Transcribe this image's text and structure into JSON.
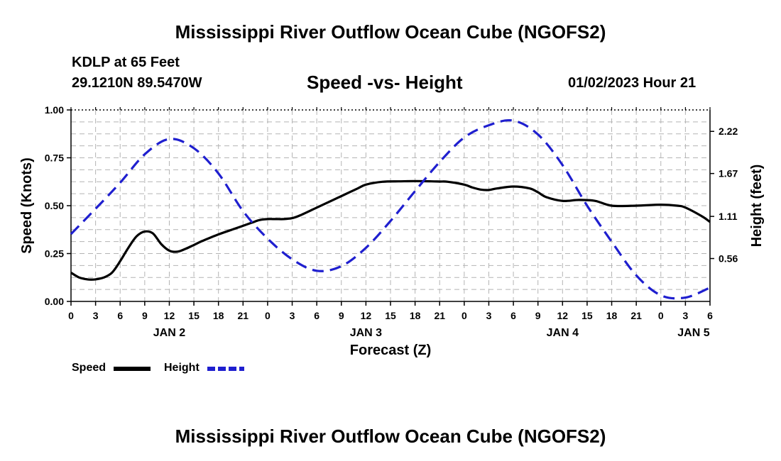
{
  "header": {
    "title": "Mississippi River Outflow Ocean Cube (NGOFS2)",
    "station": "KDLP at 65 Feet",
    "coordinates": "29.1210N  89.5470W",
    "subtitle": "Speed -vs- Height",
    "run_time": "01/02/2023 Hour 21"
  },
  "footer": {
    "title": "Mississippi River Outflow Ocean Cube (NGOFS2)"
  },
  "legend": {
    "speed_label": "Speed",
    "height_label": "Height"
  },
  "chart_data": {
    "type": "line",
    "title": "Speed -vs- Height",
    "xlabel": "Forecast (Z)",
    "ylabel_left": "Speed (Knots)",
    "ylabel_right": "Height (feet)",
    "x_unit": "forecast hour from 01/02/2023 00Z",
    "xlim": [
      0,
      78
    ],
    "ylim_left": [
      0,
      1.0
    ],
    "ylim_right": [
      0,
      2.5
    ],
    "x_ticks": [
      0,
      3,
      6,
      9,
      12,
      15,
      18,
      21,
      24,
      27,
      30,
      33,
      36,
      39,
      42,
      45,
      48,
      51,
      54,
      57,
      60,
      63,
      66,
      69,
      72,
      75,
      78
    ],
    "x_tick_labels": [
      "0",
      "3",
      "6",
      "9",
      "12",
      "15",
      "18",
      "21",
      "0",
      "3",
      "6",
      "9",
      "12",
      "15",
      "18",
      "21",
      "0",
      "3",
      "6",
      "9",
      "12",
      "15",
      "18",
      "21",
      "0",
      "3",
      "6"
    ],
    "day_labels": [
      {
        "x": 12,
        "label": "JAN 2"
      },
      {
        "x": 36,
        "label": "JAN 3"
      },
      {
        "x": 60,
        "label": "JAN 4"
      },
      {
        "x": 76,
        "label": "JAN 5"
      }
    ],
    "y_ticks_left": [
      0,
      0.25,
      0.5,
      0.75,
      1.0
    ],
    "y_tick_labels_left": [
      "0.00",
      "0.25",
      "0.50",
      "0.75",
      "1.00"
    ],
    "y_ticks_right": [
      0.56,
      1.11,
      1.67,
      2.22
    ],
    "y_tick_labels_right": [
      "0.56",
      "1.11",
      "1.67",
      "2.22"
    ],
    "grid": true,
    "legend_position": "bottom-left",
    "series": [
      {
        "name": "Speed",
        "axis": "left",
        "color": "#000000",
        "style": "solid",
        "x": [
          0,
          1,
          2,
          3,
          4,
          5,
          6,
          7,
          8,
          9,
          10,
          11,
          12,
          13,
          14,
          15,
          16,
          18,
          20,
          22,
          23,
          24,
          25,
          26,
          27,
          28,
          30,
          32,
          33,
          35,
          36,
          38,
          40,
          42,
          44,
          45,
          46,
          48,
          49,
          50,
          51,
          52,
          54,
          56,
          57,
          58,
          60,
          62,
          64,
          66,
          69,
          72,
          74,
          75,
          77,
          78
        ],
        "values": [
          0.15,
          0.125,
          0.115,
          0.115,
          0.125,
          0.15,
          0.21,
          0.28,
          0.34,
          0.365,
          0.355,
          0.3,
          0.265,
          0.26,
          0.275,
          0.295,
          0.315,
          0.35,
          0.38,
          0.41,
          0.425,
          0.43,
          0.43,
          0.43,
          0.435,
          0.45,
          0.49,
          0.53,
          0.55,
          0.59,
          0.61,
          0.625,
          0.627,
          0.628,
          0.627,
          0.626,
          0.625,
          0.61,
          0.595,
          0.584,
          0.582,
          0.59,
          0.6,
          0.59,
          0.57,
          0.545,
          0.525,
          0.53,
          0.525,
          0.5,
          0.5,
          0.505,
          0.5,
          0.49,
          0.445,
          0.415
        ]
      },
      {
        "name": "Height",
        "axis": "right",
        "color": "#1f1fcf",
        "style": "dashed",
        "x": [
          0,
          3,
          6,
          9,
          12,
          15,
          18,
          21,
          24,
          27,
          30,
          33,
          36,
          39,
          42,
          45,
          48,
          51,
          54,
          57,
          60,
          63,
          66,
          69,
          72,
          75,
          78
        ],
        "values": [
          0.88,
          1.21,
          1.55,
          1.92,
          2.12,
          2.0,
          1.67,
          1.18,
          0.82,
          0.55,
          0.4,
          0.46,
          0.7,
          1.05,
          1.44,
          1.82,
          2.14,
          2.3,
          2.36,
          2.18,
          1.78,
          1.25,
          0.78,
          0.34,
          0.08,
          0.05,
          0.18
        ]
      }
    ]
  }
}
